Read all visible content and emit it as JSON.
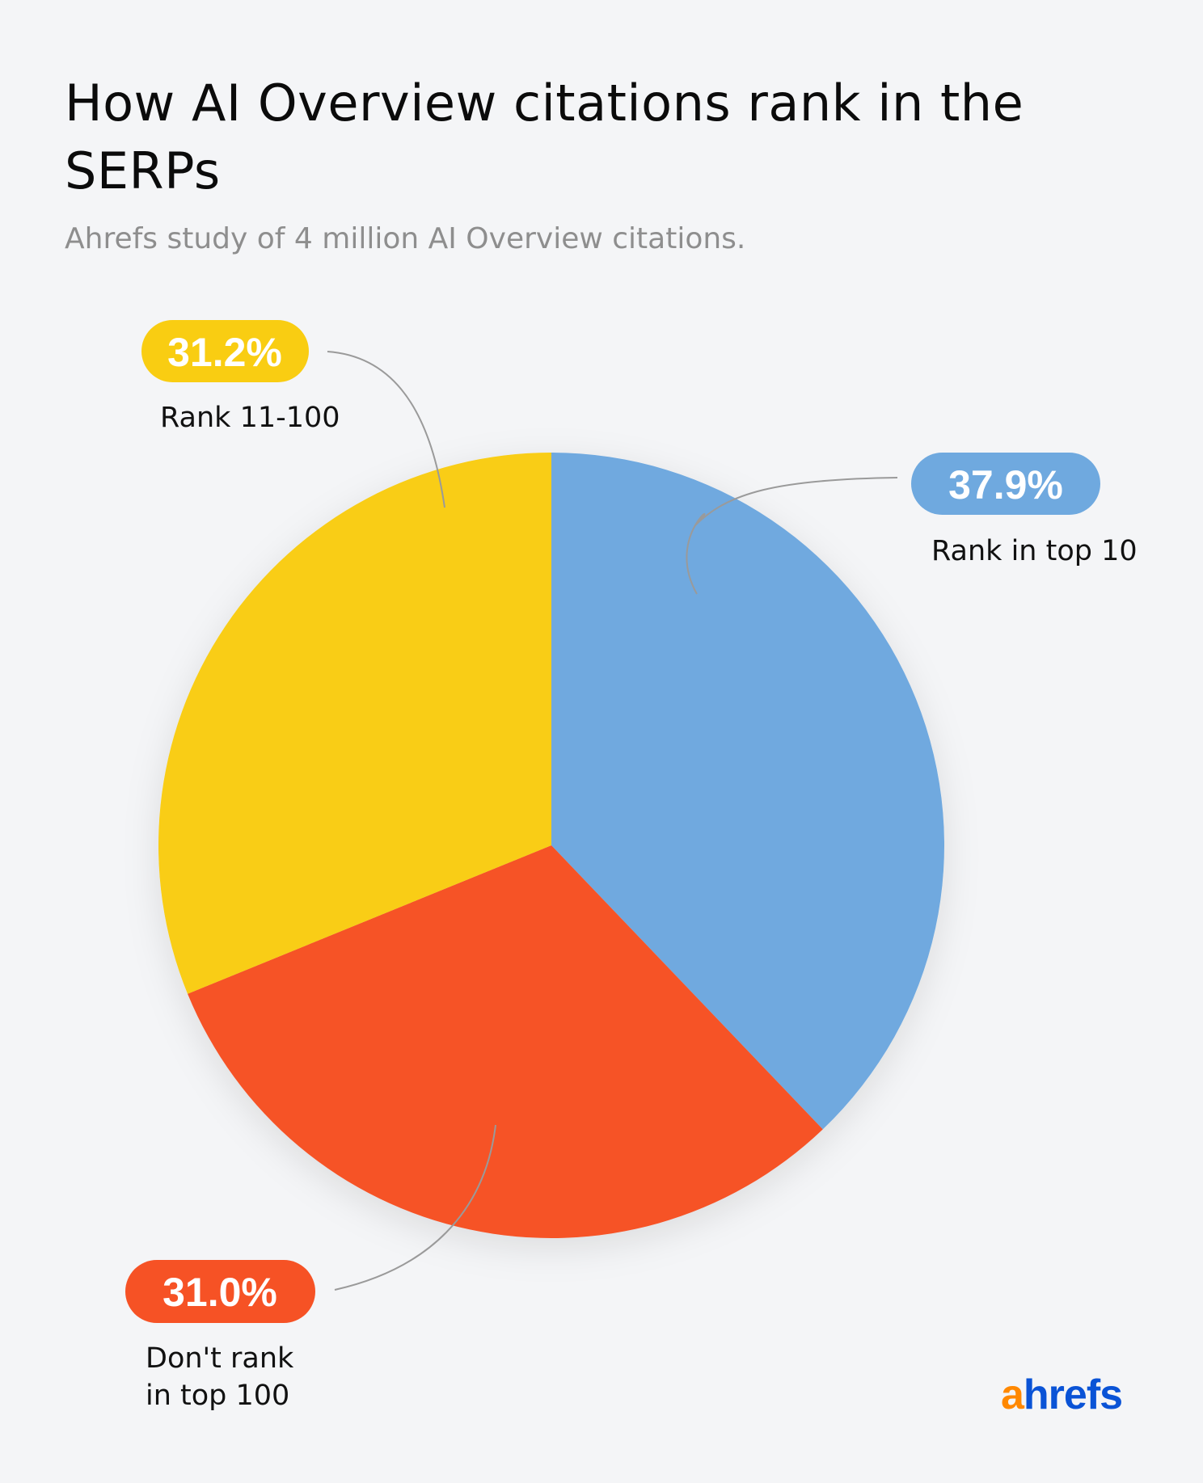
{
  "header": {
    "title": "How AI Overview citations rank in the SERPs",
    "subtitle": "Ahrefs study of 4 million AI Overview citations."
  },
  "brand": {
    "logo_first": "a",
    "logo_rest": "hrefs",
    "logo_first_color": "#ff8800",
    "logo_rest_color": "#0a53d6"
  },
  "chart_data": {
    "type": "pie",
    "title": "How AI Overview citations rank in the SERPs",
    "subtitle": "Ahrefs study of 4 million AI Overview citations.",
    "unit": "%",
    "slices": [
      {
        "label": "Rank in top 10",
        "value": 37.9,
        "display": "37.9%",
        "color": "#6fa9df"
      },
      {
        "label": "Don't rank in top 100",
        "value": 31.0,
        "display": "31.0%",
        "color": "#f65225"
      },
      {
        "label": "Rank 11-100",
        "value": 31.2,
        "display": "31.2%",
        "color": "#f9cd12"
      }
    ]
  }
}
